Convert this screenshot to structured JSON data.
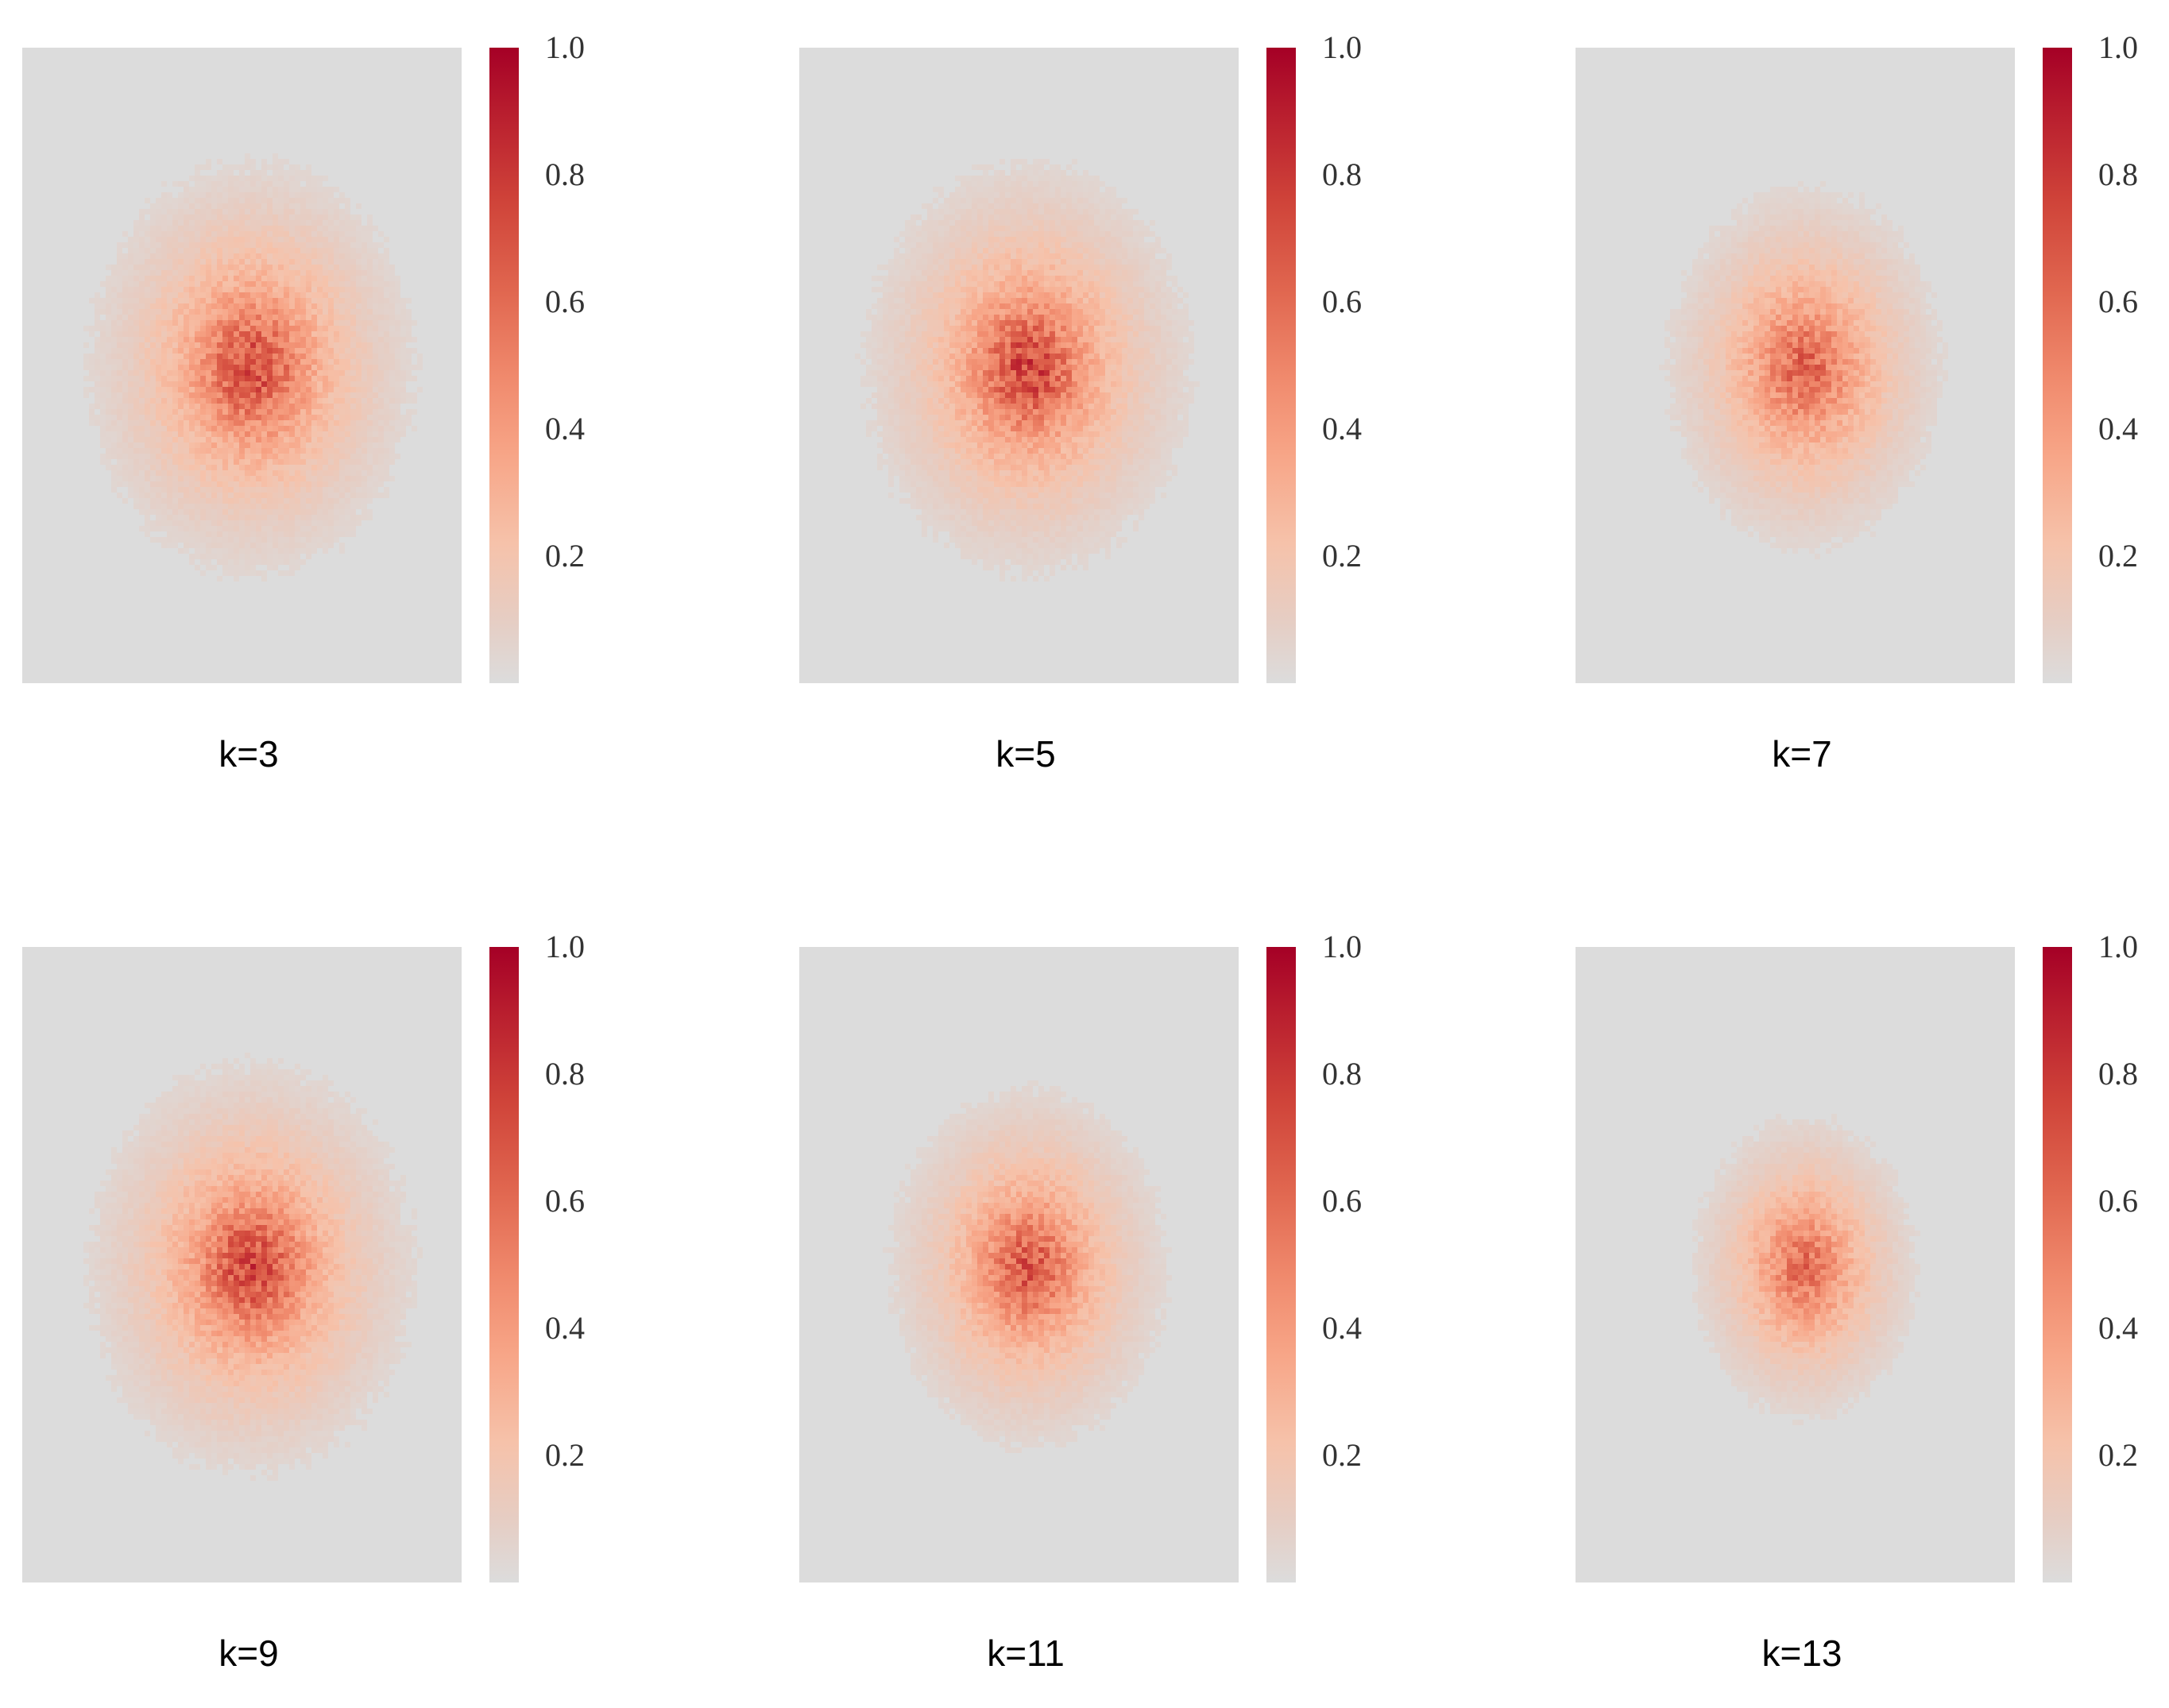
{
  "chart_data": [
    {
      "type": "heatmap",
      "label": "k=3",
      "colorbar": {
        "ticks": [
          "1.0",
          "0.8",
          "0.6",
          "0.4",
          "0.2"
        ],
        "range": [
          0,
          1.0
        ],
        "colors": [
          "#dcdcdc",
          "#f6c2aa",
          "#f08a6d",
          "#cf4339",
          "#a50026"
        ]
      },
      "background_value": 0.0,
      "hotspot": {
        "peak": 0.72,
        "spread": "wide"
      }
    },
    {
      "type": "heatmap",
      "label": "k=5",
      "colorbar": {
        "ticks": [
          "1.0",
          "0.8",
          "0.6",
          "0.4",
          "0.2"
        ],
        "range": [
          0,
          1.0
        ],
        "colors": [
          "#dcdcdc",
          "#f6c2aa",
          "#f08a6d",
          "#cf4339",
          "#a50026"
        ]
      },
      "background_value": 0.0,
      "hotspot": {
        "peak": 0.75,
        "spread": "wide"
      }
    },
    {
      "type": "heatmap",
      "label": "k=7",
      "colorbar": {
        "ticks": [
          "1.0",
          "0.8",
          "0.6",
          "0.4",
          "0.2"
        ],
        "range": [
          0,
          1.0
        ],
        "colors": [
          "#dcdcdc",
          "#f6c2aa",
          "#f08a6d",
          "#cf4339",
          "#a50026"
        ]
      },
      "background_value": 0.0,
      "hotspot": {
        "peak": 0.62,
        "spread": "medium"
      }
    },
    {
      "type": "heatmap",
      "label": "k=9",
      "colorbar": {
        "ticks": [
          "1.0",
          "0.8",
          "0.6",
          "0.4",
          "0.2"
        ],
        "range": [
          0,
          1.0
        ],
        "colors": [
          "#dcdcdc",
          "#f6c2aa",
          "#f08a6d",
          "#cf4339",
          "#a50026"
        ]
      },
      "background_value": 0.0,
      "hotspot": {
        "peak": 0.74,
        "spread": "wide"
      }
    },
    {
      "type": "heatmap",
      "label": "k=11",
      "colorbar": {
        "ticks": [
          "1.0",
          "0.8",
          "0.6",
          "0.4",
          "0.2"
        ],
        "range": [
          0,
          1.0
        ],
        "colors": [
          "#dcdcdc",
          "#f6c2aa",
          "#f08a6d",
          "#cf4339",
          "#a50026"
        ]
      },
      "background_value": 0.0,
      "hotspot": {
        "peak": 0.68,
        "spread": "medium"
      }
    },
    {
      "type": "heatmap",
      "label": "k=13",
      "colorbar": {
        "ticks": [
          "1.0",
          "0.8",
          "0.6",
          "0.4",
          "0.2"
        ],
        "range": [
          0,
          1.0
        ],
        "colors": [
          "#dcdcdc",
          "#f6c2aa",
          "#f08a6d",
          "#cf4339",
          "#a50026"
        ]
      },
      "background_value": 0.0,
      "hotspot": {
        "peak": 0.58,
        "spread": "narrow"
      }
    }
  ]
}
